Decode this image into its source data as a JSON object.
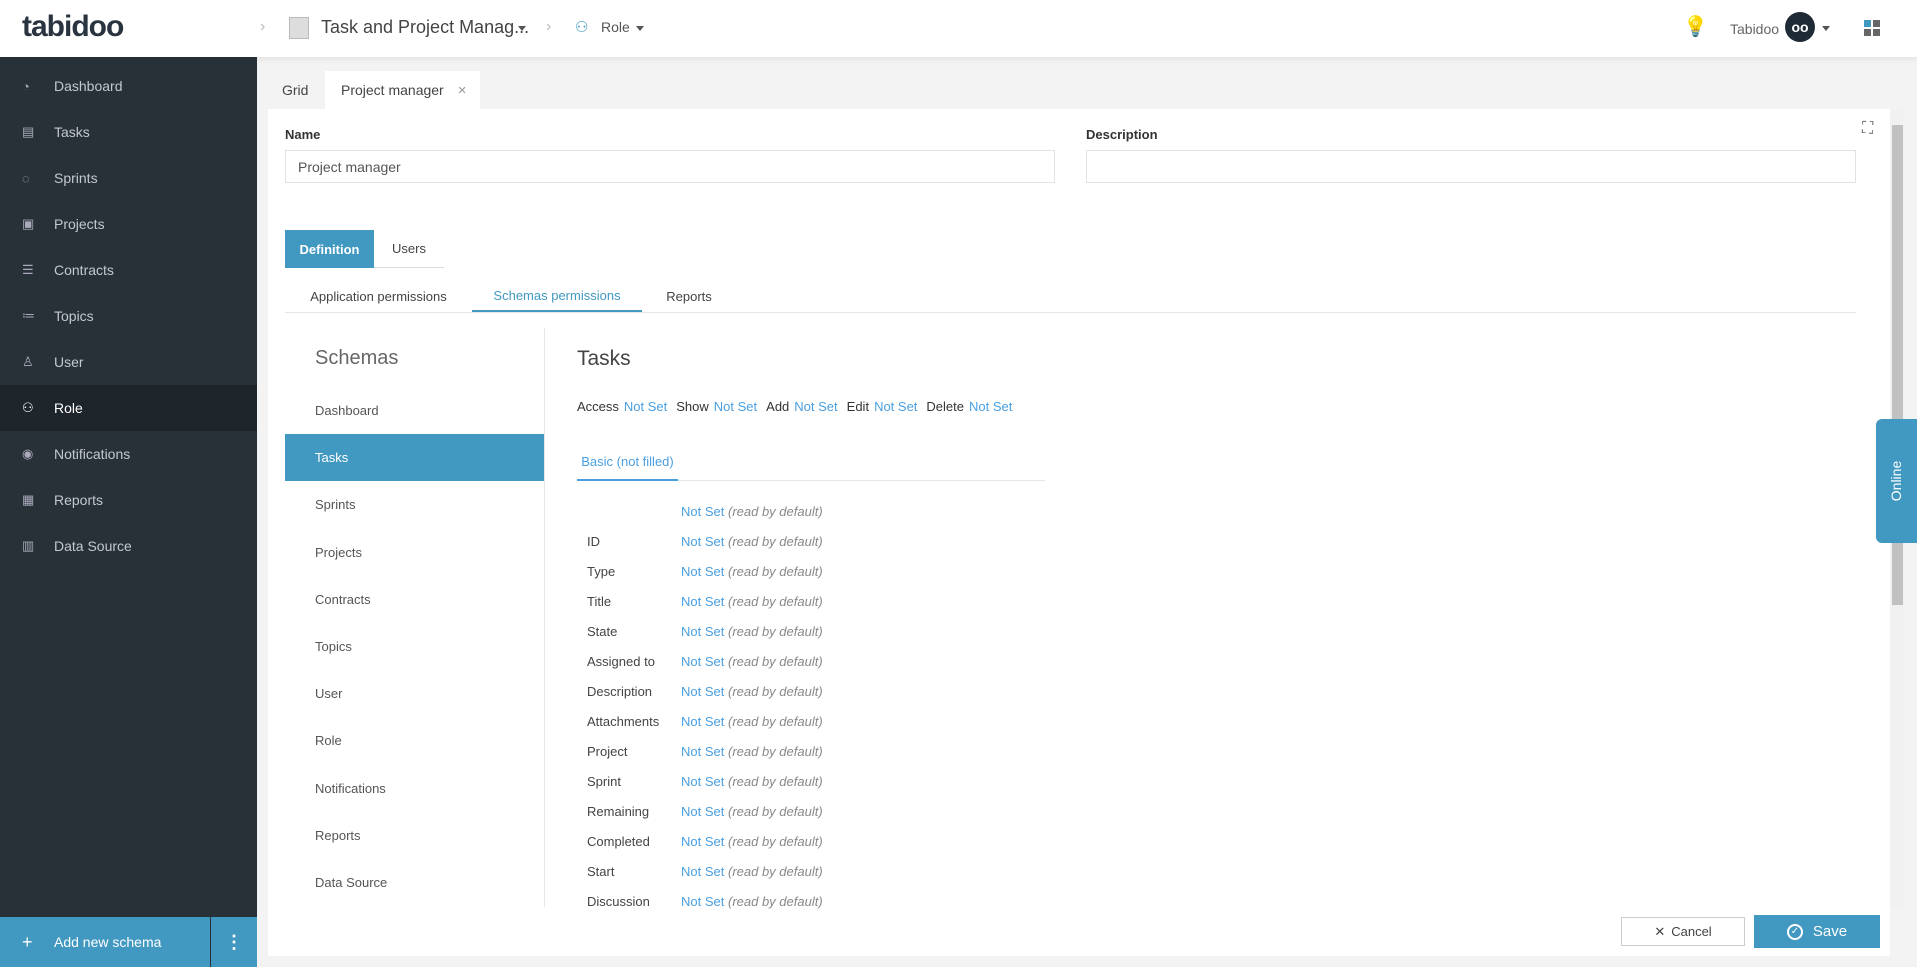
{
  "header": {
    "logo": "tabidoo",
    "app_title": "Task and Project Manag...",
    "section": "Role",
    "user": "Tabidoo",
    "icons": [
      "lightbulb-icon",
      "avatar-owl",
      "apps-grid-icon"
    ]
  },
  "sidebar": {
    "items": [
      {
        "label": "Dashboard",
        "icon": "gauge-icon"
      },
      {
        "label": "Tasks",
        "icon": "document-icon"
      },
      {
        "label": "Sprints",
        "icon": "sprint-icon"
      },
      {
        "label": "Projects",
        "icon": "money-icon"
      },
      {
        "label": "Contracts",
        "icon": "table-icon"
      },
      {
        "label": "Topics",
        "icon": "checklist-icon"
      },
      {
        "label": "User",
        "icon": "user-icon"
      },
      {
        "label": "Role",
        "icon": "user-lock-icon",
        "active": true
      },
      {
        "label": "Notifications",
        "icon": "eye-icon"
      },
      {
        "label": "Reports",
        "icon": "report-icon"
      },
      {
        "label": "Data Source",
        "icon": "database-icon"
      }
    ],
    "add_label": "Add new schema"
  },
  "tabs": {
    "grid": "Grid",
    "open": "Project manager"
  },
  "form": {
    "name_label": "Name",
    "name_value": "Project manager",
    "description_label": "Description",
    "description_value": ""
  },
  "def_tabs": [
    "Definition",
    "Users"
  ],
  "sub_tabs": [
    "Application permissions",
    "Schemas permissions",
    "Reports"
  ],
  "schemas": {
    "title": "Schemas",
    "items": [
      "Dashboard",
      "Tasks",
      "Sprints",
      "Projects",
      "Contracts",
      "Topics",
      "User",
      "Role",
      "Notifications",
      "Reports",
      "Data Source"
    ],
    "active": "Tasks"
  },
  "detail": {
    "title": "Tasks",
    "perms": [
      {
        "label": "Access",
        "value": "Not Set"
      },
      {
        "label": "Show",
        "value": "Not Set"
      },
      {
        "label": "Add",
        "value": "Not Set"
      },
      {
        "label": "Edit",
        "value": "Not Set"
      },
      {
        "label": "Delete",
        "value": "Not Set"
      }
    ],
    "field_tab": "Basic (not filled)",
    "value": "Not Set",
    "default_note": "(read by default)",
    "fields": [
      "",
      "ID",
      "Type",
      "Title",
      "State",
      "Assigned to",
      "Description",
      "Attachments",
      "Project",
      "Sprint",
      "Remaining",
      "Completed",
      "Start",
      "Discussion"
    ]
  },
  "buttons": {
    "cancel": "Cancel",
    "save": "Save"
  },
  "online": "Online",
  "colors": {
    "accent": "#4198c1",
    "link": "#4a9fe0",
    "sidebar": "#283138"
  }
}
